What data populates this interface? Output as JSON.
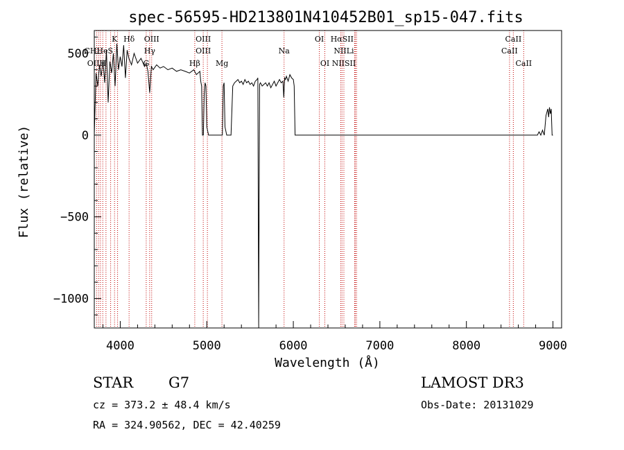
{
  "chart_data": {
    "type": "line",
    "title": "spec-56595-HD213801N410452B01_sp15-047.fits",
    "xlabel": "Wavelength (Å)",
    "ylabel": "Flux (relative)",
    "xlim": [
      3700,
      9100
    ],
    "ylim": [
      -1180,
      640
    ],
    "xticks": [
      4000,
      5000,
      6000,
      7000,
      8000,
      9000
    ],
    "yticks": [
      -1000,
      -500,
      0,
      500
    ],
    "xtick_labels": [
      "4000",
      "5000",
      "6000",
      "7000",
      "8000",
      "9000"
    ],
    "ytick_labels": [
      "−1000",
      "−500",
      "0",
      "500"
    ],
    "grid": false,
    "series": [
      {
        "x": [
          3700,
          3720,
          3740,
          3760,
          3780,
          3800,
          3820,
          3840,
          3860,
          3880,
          3900,
          3920,
          3940,
          3960,
          3980,
          4000,
          4020,
          4040,
          4060,
          4080,
          4100,
          4130,
          4160,
          4200,
          4240,
          4280,
          4300,
          4320,
          4340,
          4360,
          4380,
          4420,
          4460,
          4500,
          4550,
          4600,
          4650,
          4700,
          4750,
          4800,
          4850,
          4880,
          4900,
          4920,
          4930,
          4940,
          4950,
          4960,
          4970,
          4980,
          4990,
          5000,
          5020,
          5040,
          5060,
          5080,
          5100,
          5150,
          5180,
          5190,
          5200,
          5210,
          5230,
          5260,
          5280,
          5300,
          5320,
          5340,
          5360,
          5380,
          5400,
          5420,
          5440,
          5460,
          5480,
          5500,
          5520,
          5540,
          5560,
          5580,
          5590,
          5600,
          5610,
          5620,
          5640,
          5660,
          5680,
          5700,
          5720,
          5740,
          5760,
          5780,
          5800,
          5820,
          5840,
          5860,
          5880,
          5890,
          5900,
          5910,
          5920,
          5940,
          5960,
          5980,
          6000,
          6010,
          6020,
          6030,
          6040,
          6100,
          6200,
          6400,
          6600,
          6800,
          7000,
          7100,
          7200,
          7300,
          7400,
          7500,
          7600,
          7700,
          7800,
          7900,
          8000,
          8100,
          8200,
          8300,
          8400,
          8500,
          8550,
          8600,
          8650,
          8700,
          8750,
          8780,
          8800,
          8820,
          8840,
          8860,
          8880,
          8900,
          8920,
          8940,
          8950,
          8960,
          8970,
          8980,
          8990,
          9000
        ],
        "y": [
          0,
          380,
          300,
          430,
          360,
          460,
          320,
          520,
          200,
          450,
          380,
          500,
          300,
          560,
          400,
          480,
          420,
          550,
          350,
          520,
          470,
          430,
          500,
          440,
          470,
          420,
          440,
          390,
          260,
          420,
          400,
          430,
          410,
          420,
          400,
          410,
          390,
          400,
          390,
          380,
          400,
          370,
          380,
          390,
          330,
          300,
          0,
          0,
          250,
          320,
          300,
          50,
          0,
          0,
          0,
          0,
          0,
          0,
          0,
          300,
          320,
          50,
          0,
          0,
          0,
          300,
          320,
          330,
          340,
          320,
          330,
          310,
          340,
          320,
          330,
          310,
          320,
          300,
          330,
          340,
          350,
          -1160,
          310,
          320,
          300,
          310,
          320,
          300,
          320,
          290,
          310,
          330,
          300,
          320,
          340,
          320,
          330,
          230,
          350,
          340,
          360,
          330,
          370,
          350,
          340,
          300,
          0,
          0,
          0,
          0,
          0,
          0,
          0,
          0,
          0,
          0,
          0,
          0,
          0,
          0,
          0,
          0,
          0,
          0,
          0,
          0,
          0,
          0,
          0,
          0,
          0,
          0,
          0,
          0,
          0,
          0,
          0,
          0,
          20,
          0,
          30,
          0,
          120,
          160,
          110,
          170,
          130,
          160,
          0,
          0
        ]
      }
    ],
    "lines": [
      {
        "label": "Hδ",
        "x": 4102,
        "row": 1
      },
      {
        "label": "Hδ",
        "x": 4102,
        "row": 1
      },
      {
        "label": "K",
        "x": 3934,
        "row": 1
      },
      {
        "label": "OIII",
        "x": 4363,
        "row": 1
      },
      {
        "label": "OIII",
        "x": 4959,
        "row": 1
      },
      {
        "label": "OI",
        "x": 6300,
        "row": 1
      },
      {
        "label": "HαSII",
        "x": 6563,
        "row": 1
      },
      {
        "label": "CaII",
        "x": 8542,
        "row": 1
      },
      {
        "label": "CHHeS",
        "x": 3750,
        "row": 2
      },
      {
        "label": "Hγ",
        "x": 4340,
        "row": 2
      },
      {
        "label": "OIII",
        "x": 4959,
        "row": 2
      },
      {
        "label": "Na",
        "x": 5893,
        "row": 2
      },
      {
        "label": "NIILi",
        "x": 6584,
        "row": 2
      },
      {
        "label": "CaII",
        "x": 8498,
        "row": 2
      },
      {
        "label": "OIIH",
        "x": 3727,
        "row": 3
      },
      {
        "label": "G",
        "x": 4300,
        "row": 3
      },
      {
        "label": "Hβ",
        "x": 4861,
        "row": 3
      },
      {
        "label": "Mg",
        "x": 5175,
        "row": 3
      },
      {
        "label": "OI",
        "x": 6364,
        "row": 3
      },
      {
        "label": "NIISII",
        "x": 6584,
        "row": 3
      },
      {
        "label": "CaII",
        "x": 8662,
        "row": 3
      }
    ],
    "line_positions": [
      3727,
      3750,
      3771,
      3798,
      3835,
      3889,
      3934,
      3969,
      4102,
      4300,
      4340,
      4363,
      4861,
      4959,
      5007,
      5175,
      5893,
      6300,
      6364,
      6548,
      6563,
      6584,
      6708,
      6717,
      6731,
      8498,
      8542,
      8662
    ]
  },
  "info": {
    "object_class": "STAR",
    "subclass": "G7",
    "survey": "LAMOST DR3",
    "cz": "cz = 373.2 ± 48.4 km/s",
    "obs_date": "Obs-Date: 20131029",
    "coords": "RA = 324.90562, DEC =  42.40259"
  },
  "colors": {
    "spectrum": "#000000",
    "line_markers": "#c00000"
  }
}
